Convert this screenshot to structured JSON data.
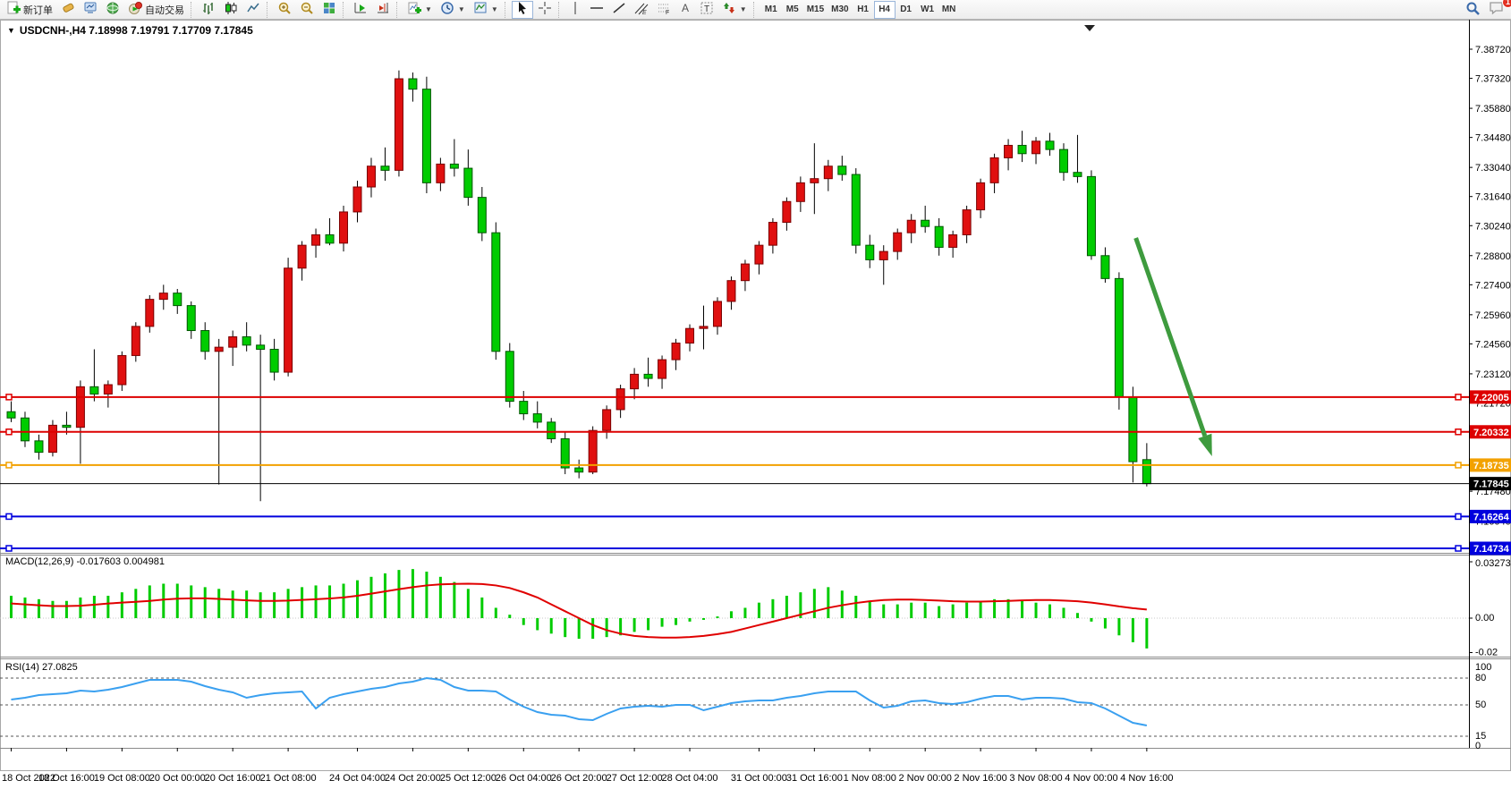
{
  "toolbar": {
    "new_order_label": "新订单",
    "autotrading_label": "自动交易",
    "timeframes": [
      "M1",
      "M5",
      "M15",
      "M30",
      "H1",
      "H4",
      "D1",
      "W1",
      "MN"
    ],
    "active_timeframe": "H4",
    "notification_count": "1"
  },
  "chart_header": {
    "title": "USDCNH-,H4  7.18998 7.19791 7.17709 7.17845"
  },
  "price_axis": {
    "ticks": [
      "7.38720",
      "7.37320",
      "7.35880",
      "7.34480",
      "7.33040",
      "7.31640",
      "7.30240",
      "7.28800",
      "7.27400",
      "7.25960",
      "7.24560",
      "7.23120",
      "7.21720",
      "7.17480",
      "7.16040"
    ]
  },
  "lines": [
    {
      "label": "7.22005",
      "value": 7.22005,
      "color": "#dd0000",
      "width": 2
    },
    {
      "label": "7.20332",
      "value": 7.20332,
      "color": "#dd0000",
      "width": 2
    },
    {
      "label": "7.18735",
      "value": 7.18735,
      "color": "#f2a100",
      "width": 2
    },
    {
      "label": "7.17845",
      "value": 7.17845,
      "color": "#000000",
      "width": 1,
      "is_bid": true
    },
    {
      "label": "7.16264",
      "value": 7.16264,
      "color": "#0000dd",
      "width": 2
    },
    {
      "label": "7.14734",
      "value": 7.14734,
      "color": "#0000dd",
      "width": 2
    }
  ],
  "time_axis": {
    "labels": [
      "18 Oct 2022",
      "18 Oct 16:00",
      "19 Oct 08:00",
      "20 Oct 00:00",
      "20 Oct 16:00",
      "21 Oct 08:00",
      "24 Oct 04:00",
      "24 Oct 20:00",
      "25 Oct 12:00",
      "26 Oct 04:00",
      "26 Oct 20:00",
      "27 Oct 12:00",
      "28 Oct 04:00",
      "31 Oct 00:00",
      "31 Oct 16:00",
      "1 Nov 08:00",
      "2 Nov 00:00",
      "2 Nov 16:00",
      "3 Nov 08:00",
      "4 Nov 00:00",
      "4 Nov 16:00"
    ],
    "bar_index": [
      0,
      4,
      8,
      12,
      16,
      20,
      25,
      29,
      33,
      37,
      41,
      45,
      49,
      54,
      58,
      62,
      66,
      70,
      74,
      78,
      82
    ]
  },
  "indicators": {
    "macd": {
      "label": "MACD(12,26,9) -0.017603 0.004981",
      "axis": [
        {
          "t": "0.032735",
          "v": 0.032735
        },
        {
          "t": "0.00",
          "v": 0.0
        },
        {
          "t": "-0.02",
          "v": -0.02
        }
      ]
    },
    "rsi": {
      "label": "RSI(14) 27.0825",
      "axis": [
        {
          "t": "100",
          "v": 100
        },
        {
          "t": "80",
          "v": 80
        },
        {
          "t": "50",
          "v": 50
        },
        {
          "t": "15",
          "v": 15
        },
        {
          "t": "0",
          "v": 0
        }
      ],
      "levels": [
        80,
        50,
        15
      ]
    }
  },
  "chart_data": [
    {
      "type": "candlestick",
      "symbol": "USDCNH-",
      "period": "H4",
      "up_color": "#e01010",
      "down_color": "#00cc00",
      "ylim": [
        7.141,
        7.392
      ],
      "ohlc": [
        [
          "18 Oct 00:00",
          7.213,
          7.218,
          7.208,
          7.21
        ],
        [
          "18 Oct 04:00",
          7.21,
          7.213,
          7.196,
          7.199
        ],
        [
          "18 Oct 08:00",
          7.199,
          7.202,
          7.19,
          7.1935
        ],
        [
          "18 Oct 12:00",
          7.1935,
          7.209,
          7.1915,
          7.2065
        ],
        [
          "18 Oct 16:00",
          7.2065,
          7.213,
          7.202,
          7.2055
        ],
        [
          "18 Oct 20:00",
          7.2055,
          7.228,
          7.188,
          7.225
        ],
        [
          "19 Oct 00:00",
          7.225,
          7.243,
          7.218,
          7.2215
        ],
        [
          "19 Oct 04:00",
          7.2215,
          7.228,
          7.215,
          7.226
        ],
        [
          "19 Oct 08:00",
          7.226,
          7.242,
          7.223,
          7.24
        ],
        [
          "19 Oct 12:00",
          7.24,
          7.256,
          7.237,
          7.254
        ],
        [
          "19 Oct 16:00",
          7.254,
          7.269,
          7.251,
          7.267
        ],
        [
          "19 Oct 20:00",
          7.267,
          7.274,
          7.262,
          7.27
        ],
        [
          "20 Oct 00:00",
          7.27,
          7.272,
          7.26,
          7.264
        ],
        [
          "20 Oct 04:00",
          7.264,
          7.266,
          7.248,
          7.252
        ],
        [
          "20 Oct 08:00",
          7.252,
          7.256,
          7.238,
          7.242
        ],
        [
          "20 Oct 12:00",
          7.242,
          7.248,
          7.178,
          7.244
        ],
        [
          "20 Oct 16:00",
          7.244,
          7.252,
          7.235,
          7.249
        ],
        [
          "20 Oct 20:00",
          7.249,
          7.256,
          7.242,
          7.245
        ],
        [
          "21 Oct 00:00",
          7.245,
          7.25,
          7.17,
          7.243
        ],
        [
          "21 Oct 04:00",
          7.243,
          7.248,
          7.228,
          7.232
        ],
        [
          "21 Oct 08:00",
          7.232,
          7.287,
          7.23,
          7.282
        ],
        [
          "21 Oct 12:00",
          7.282,
          7.295,
          7.276,
          7.293
        ],
        [
          "21 Oct 16:00",
          7.293,
          7.301,
          7.287,
          7.298
        ],
        [
          "21 Oct 20:00",
          7.298,
          7.306,
          7.293,
          7.294
        ],
        [
          "24 Oct 00:00",
          7.294,
          7.312,
          7.29,
          7.309
        ],
        [
          "24 Oct 04:00",
          7.309,
          7.324,
          7.304,
          7.321
        ],
        [
          "24 Oct 08:00",
          7.321,
          7.335,
          7.316,
          7.331
        ],
        [
          "24 Oct 12:00",
          7.331,
          7.34,
          7.324,
          7.329
        ],
        [
          "24 Oct 16:00",
          7.329,
          7.377,
          7.326,
          7.373
        ],
        [
          "24 Oct 20:00",
          7.373,
          7.376,
          7.362,
          7.368
        ],
        [
          "25 Oct 00:00",
          7.368,
          7.374,
          7.318,
          7.323
        ],
        [
          "25 Oct 04:00",
          7.323,
          7.335,
          7.319,
          7.332
        ],
        [
          "25 Oct 08:00",
          7.332,
          7.344,
          7.326,
          7.33
        ],
        [
          "25 Oct 12:00",
          7.33,
          7.339,
          7.312,
          7.316
        ],
        [
          "25 Oct 16:00",
          7.316,
          7.321,
          7.295,
          7.299
        ],
        [
          "25 Oct 20:00",
          7.299,
          7.304,
          7.238,
          7.242
        ],
        [
          "26 Oct 00:00",
          7.242,
          7.246,
          7.215,
          7.218
        ],
        [
          "26 Oct 04:00",
          7.218,
          7.223,
          7.209,
          7.212
        ],
        [
          "26 Oct 08:00",
          7.212,
          7.218,
          7.205,
          7.208
        ],
        [
          "26 Oct 12:00",
          7.208,
          7.21,
          7.198,
          7.2
        ],
        [
          "26 Oct 16:00",
          7.2,
          7.203,
          7.183,
          7.186
        ],
        [
          "26 Oct 20:00",
          7.186,
          7.19,
          7.181,
          7.184
        ],
        [
          "27 Oct 00:00",
          7.184,
          7.206,
          7.183,
          7.204
        ],
        [
          "27 Oct 04:00",
          7.204,
          7.216,
          7.2,
          7.214
        ],
        [
          "27 Oct 08:00",
          7.214,
          7.226,
          7.21,
          7.224
        ],
        [
          "27 Oct 12:00",
          7.224,
          7.234,
          7.219,
          7.231
        ],
        [
          "27 Oct 16:00",
          7.231,
          7.239,
          7.225,
          7.229
        ],
        [
          "27 Oct 20:00",
          7.229,
          7.24,
          7.224,
          7.238
        ],
        [
          "28 Oct 00:00",
          7.238,
          7.248,
          7.233,
          7.246
        ],
        [
          "28 Oct 04:00",
          7.246,
          7.255,
          7.242,
          7.253
        ],
        [
          "28 Oct 08:00",
          7.253,
          7.264,
          7.243,
          7.254
        ],
        [
          "28 Oct 12:00",
          7.254,
          7.268,
          7.25,
          7.266
        ],
        [
          "28 Oct 16:00",
          7.266,
          7.278,
          7.262,
          7.276
        ],
        [
          "28 Oct 20:00",
          7.276,
          7.286,
          7.271,
          7.284
        ],
        [
          "31 Oct 00:00",
          7.284,
          7.295,
          7.279,
          7.293
        ],
        [
          "31 Oct 04:00",
          7.293,
          7.306,
          7.289,
          7.304
        ],
        [
          "31 Oct 08:00",
          7.304,
          7.316,
          7.3,
          7.314
        ],
        [
          "31 Oct 12:00",
          7.314,
          7.326,
          7.309,
          7.323
        ],
        [
          "31 Oct 16:00",
          7.323,
          7.342,
          7.308,
          7.325
        ],
        [
          "31 Oct 20:00",
          7.325,
          7.334,
          7.319,
          7.331
        ],
        [
          "1 Nov 00:00",
          7.331,
          7.336,
          7.324,
          7.327
        ],
        [
          "1 Nov 04:00",
          7.327,
          7.33,
          7.289,
          7.293
        ],
        [
          "1 Nov 08:00",
          7.293,
          7.298,
          7.282,
          7.286
        ],
        [
          "1 Nov 12:00",
          7.286,
          7.293,
          7.274,
          7.29
        ],
        [
          "1 Nov 16:00",
          7.29,
          7.301,
          7.286,
          7.299
        ],
        [
          "1 Nov 20:00",
          7.299,
          7.308,
          7.294,
          7.305
        ],
        [
          "2 Nov 00:00",
          7.305,
          7.312,
          7.299,
          7.302
        ],
        [
          "2 Nov 04:00",
          7.302,
          7.306,
          7.288,
          7.292
        ],
        [
          "2 Nov 08:00",
          7.292,
          7.3,
          7.287,
          7.298
        ],
        [
          "2 Nov 12:00",
          7.298,
          7.312,
          7.294,
          7.31
        ],
        [
          "2 Nov 16:00",
          7.31,
          7.325,
          7.306,
          7.323
        ],
        [
          "2 Nov 20:00",
          7.323,
          7.337,
          7.318,
          7.335
        ],
        [
          "3 Nov 00:00",
          7.335,
          7.344,
          7.329,
          7.341
        ],
        [
          "3 Nov 04:00",
          7.341,
          7.348,
          7.333,
          7.337
        ],
        [
          "3 Nov 08:00",
          7.337,
          7.345,
          7.332,
          7.343
        ],
        [
          "3 Nov 12:00",
          7.343,
          7.347,
          7.336,
          7.339
        ],
        [
          "3 Nov 16:00",
          7.339,
          7.342,
          7.324,
          7.328
        ],
        [
          "3 Nov 20:00",
          7.328,
          7.346,
          7.323,
          7.326
        ],
        [
          "4 Nov 00:00",
          7.326,
          7.329,
          7.286,
          7.288
        ],
        [
          "4 Nov 04:00",
          7.288,
          7.292,
          7.275,
          7.277
        ],
        [
          "4 Nov 08:00",
          7.277,
          7.28,
          7.214,
          7.22
        ],
        [
          "4 Nov 12:00",
          7.22,
          7.225,
          7.179,
          7.189
        ],
        [
          "4 Nov 16:00",
          7.18998,
          7.19791,
          7.17709,
          7.17845
        ]
      ],
      "annotations": [
        {
          "type": "arrow",
          "color": "#3e9b3e",
          "from": {
            "bar": 81.5,
            "price": 7.2965
          },
          "to": {
            "bar": 87.0,
            "price": 7.1916
          }
        }
      ]
    },
    {
      "type": "bar",
      "name": "MACD(12,26,9)",
      "value": -0.017603,
      "signal_value": 0.004981,
      "ylim": [
        -0.0245,
        0.032735
      ],
      "histogram": [
        0.013,
        0.012,
        0.011,
        0.01,
        0.01,
        0.012,
        0.013,
        0.013,
        0.015,
        0.017,
        0.019,
        0.02,
        0.02,
        0.019,
        0.018,
        0.017,
        0.016,
        0.016,
        0.015,
        0.015,
        0.017,
        0.018,
        0.019,
        0.019,
        0.02,
        0.022,
        0.024,
        0.026,
        0.028,
        0.0285,
        0.027,
        0.024,
        0.021,
        0.017,
        0.012,
        0.006,
        0.002,
        -0.004,
        -0.007,
        -0.009,
        -0.011,
        -0.012,
        -0.012,
        -0.011,
        -0.01,
        -0.008,
        -0.007,
        -0.005,
        -0.004,
        -0.002,
        -0.001,
        0.001,
        0.004,
        0.006,
        0.009,
        0.011,
        0.013,
        0.015,
        0.017,
        0.018,
        0.016,
        0.013,
        0.01,
        0.008,
        0.008,
        0.009,
        0.009,
        0.007,
        0.008,
        0.009,
        0.01,
        0.011,
        0.011,
        0.01,
        0.009,
        0.008,
        0.006,
        0.003,
        -0.002,
        -0.006,
        -0.01,
        -0.014,
        -0.0176
      ],
      "signal": [
        0.0085,
        0.008,
        0.0075,
        0.007,
        0.007,
        0.0072,
        0.0078,
        0.0085,
        0.009,
        0.0095,
        0.01,
        0.0108,
        0.0113,
        0.0115,
        0.0115,
        0.0112,
        0.0108,
        0.0103,
        0.01,
        0.01,
        0.0102,
        0.0106,
        0.011,
        0.0114,
        0.012,
        0.013,
        0.0142,
        0.0155,
        0.0168,
        0.018,
        0.019,
        0.0196,
        0.0199,
        0.02,
        0.0198,
        0.019,
        0.0175,
        0.015,
        0.012,
        0.008,
        0.004,
        0.0,
        -0.004,
        -0.007,
        -0.009,
        -0.0103,
        -0.011,
        -0.0113,
        -0.0113,
        -0.011,
        -0.0103,
        -0.0093,
        -0.008,
        -0.006,
        -0.004,
        -0.002,
        0.0,
        0.002,
        0.004,
        0.006,
        0.0075,
        0.0088,
        0.0098,
        0.0105,
        0.0108,
        0.0108,
        0.0105,
        0.0102,
        0.0098,
        0.0096,
        0.0096,
        0.0098,
        0.01,
        0.0103,
        0.0105,
        0.0105,
        0.0102,
        0.0098,
        0.009,
        0.008,
        0.0068,
        0.0058,
        0.005
      ]
    },
    {
      "type": "line",
      "name": "RSI(14)",
      "value": 27.0825,
      "ylim": [
        0,
        100
      ],
      "levels": [
        80,
        50,
        15
      ],
      "values": [
        56,
        58,
        61,
        62,
        63,
        66,
        65,
        67,
        70,
        74,
        78,
        78,
        78,
        76,
        71,
        67,
        64,
        58,
        61,
        63,
        64,
        65,
        46,
        58,
        62,
        65,
        68,
        70,
        74,
        76,
        80,
        78,
        70,
        66,
        66,
        65,
        56,
        48,
        42,
        39,
        38,
        34,
        33,
        40,
        46,
        48,
        49,
        48,
        50,
        50,
        44,
        48,
        52,
        54,
        55,
        55,
        58,
        60,
        63,
        65,
        65,
        65,
        55,
        47,
        49,
        54,
        55,
        52,
        51,
        53,
        57,
        60,
        60,
        56,
        58,
        58,
        57,
        53,
        52,
        46,
        38,
        30,
        27
      ]
    }
  ]
}
